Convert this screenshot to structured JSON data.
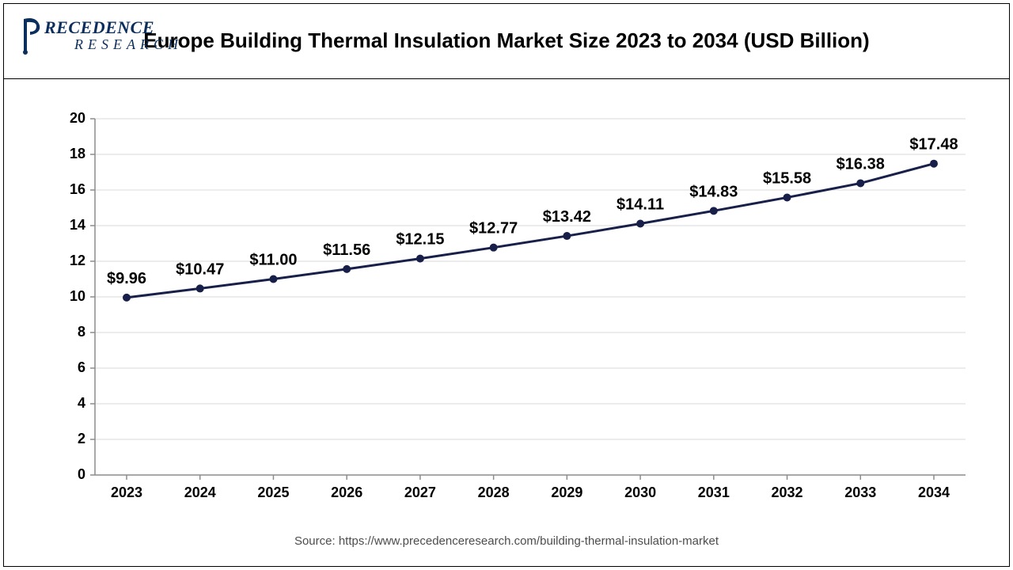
{
  "logo": {
    "brand_top": "RECEDENCE",
    "brand_bottom": "RESEARCH",
    "brand_color": "#0b2e5c"
  },
  "chart": {
    "type": "line",
    "title": "Europe Building Thermal Insulation Market Size 2023 to 2034 (USD Billion)",
    "years": [
      "2023",
      "2024",
      "2025",
      "2026",
      "2027",
      "2028",
      "2029",
      "2030",
      "2031",
      "2032",
      "2033",
      "2034"
    ],
    "values": [
      9.96,
      10.47,
      11.0,
      11.56,
      12.15,
      12.77,
      13.42,
      14.11,
      14.83,
      15.58,
      16.38,
      17.48
    ],
    "value_labels": [
      "$9.96",
      "$10.47",
      "$11.00",
      "$11.56",
      "$12.15",
      "$12.77",
      "$13.42",
      "$14.11",
      "$14.83",
      "$15.58",
      "$16.38",
      "$17.48"
    ],
    "line_color": "#18204a",
    "marker_color": "#18204a",
    "marker_radius": 5,
    "line_width": 3,
    "ylim": [
      0,
      20
    ],
    "ytick_step": 2,
    "yticks": [
      0,
      2,
      4,
      6,
      8,
      10,
      12,
      14,
      16,
      18,
      20
    ],
    "grid_color": "#d9d9d9",
    "axis_color": "#8c8c8c",
    "background_color": "#ffffff",
    "tick_label_fontsize": 18,
    "data_label_fontsize": 20,
    "title_fontsize": 26,
    "tick_len": 6
  },
  "footer": {
    "text": "Source: https://www.precedenceresearch.com/building-thermal-insulation-market"
  }
}
